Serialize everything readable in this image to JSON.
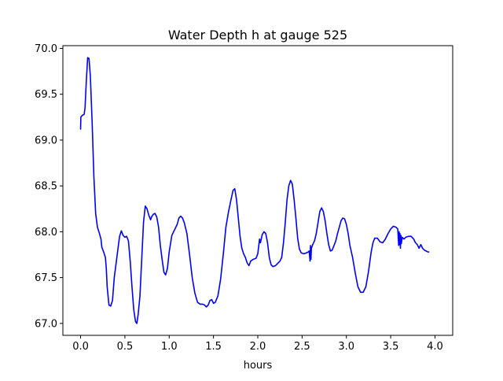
{
  "chart_data": {
    "type": "line",
    "title": "Water Depth h at gauge 525",
    "xlabel": "hours",
    "ylabel": "",
    "xlim": [
      -0.2,
      4.2
    ],
    "ylim": [
      66.87,
      70.03
    ],
    "grid": false,
    "x_ticks": [
      0.0,
      0.5,
      1.0,
      1.5,
      2.0,
      2.5,
      3.0,
      3.5,
      4.0
    ],
    "x_tick_labels": [
      "0.0",
      "0.5",
      "1.0",
      "1.5",
      "2.0",
      "2.5",
      "3.0",
      "3.5",
      "4.0"
    ],
    "y_ticks": [
      67.0,
      67.5,
      68.0,
      68.5,
      69.0,
      69.5,
      70.0
    ],
    "y_tick_labels": [
      "67.0",
      "67.5",
      "68.0",
      "68.5",
      "69.0",
      "69.5",
      "70.0"
    ],
    "series": [
      {
        "color": "#0000ff",
        "points": [
          [
            0.0,
            69.12
          ],
          [
            0.003,
            69.25
          ],
          [
            0.02,
            69.27
          ],
          [
            0.04,
            69.28
          ],
          [
            0.05,
            69.35
          ],
          [
            0.065,
            69.65
          ],
          [
            0.08,
            69.9
          ],
          [
            0.095,
            69.89
          ],
          [
            0.11,
            69.7
          ],
          [
            0.13,
            69.2
          ],
          [
            0.15,
            68.6
          ],
          [
            0.17,
            68.2
          ],
          [
            0.19,
            68.05
          ],
          [
            0.21,
            67.99
          ],
          [
            0.23,
            67.92
          ],
          [
            0.24,
            67.83
          ],
          [
            0.26,
            67.78
          ],
          [
            0.28,
            67.72
          ],
          [
            0.29,
            67.6
          ],
          [
            0.3,
            67.4
          ],
          [
            0.32,
            67.2
          ],
          [
            0.34,
            67.19
          ],
          [
            0.36,
            67.25
          ],
          [
            0.38,
            67.5
          ],
          [
            0.4,
            67.65
          ],
          [
            0.42,
            67.8
          ],
          [
            0.44,
            67.95
          ],
          [
            0.46,
            68.01
          ],
          [
            0.48,
            67.96
          ],
          [
            0.5,
            67.94
          ],
          [
            0.52,
            67.95
          ],
          [
            0.54,
            67.9
          ],
          [
            0.56,
            67.68
          ],
          [
            0.58,
            67.4
          ],
          [
            0.6,
            67.15
          ],
          [
            0.62,
            67.02
          ],
          [
            0.635,
            67.0
          ],
          [
            0.65,
            67.1
          ],
          [
            0.67,
            67.3
          ],
          [
            0.69,
            67.7
          ],
          [
            0.71,
            68.1
          ],
          [
            0.73,
            68.28
          ],
          [
            0.75,
            68.25
          ],
          [
            0.77,
            68.18
          ],
          [
            0.79,
            68.13
          ],
          [
            0.8,
            68.16
          ],
          [
            0.82,
            68.19
          ],
          [
            0.84,
            68.2
          ],
          [
            0.86,
            68.16
          ],
          [
            0.88,
            68.05
          ],
          [
            0.9,
            67.85
          ],
          [
            0.92,
            67.7
          ],
          [
            0.94,
            67.56
          ],
          [
            0.96,
            67.53
          ],
          [
            0.98,
            67.6
          ],
          [
            1.0,
            67.78
          ],
          [
            1.03,
            67.96
          ],
          [
            1.06,
            68.02
          ],
          [
            1.09,
            68.08
          ],
          [
            1.11,
            68.15
          ],
          [
            1.13,
            68.17
          ],
          [
            1.15,
            68.15
          ],
          [
            1.17,
            68.1
          ],
          [
            1.2,
            67.98
          ],
          [
            1.23,
            67.75
          ],
          [
            1.26,
            67.5
          ],
          [
            1.29,
            67.33
          ],
          [
            1.32,
            67.23
          ],
          [
            1.35,
            67.21
          ],
          [
            1.38,
            67.21
          ],
          [
            1.4,
            67.2
          ],
          [
            1.42,
            67.18
          ],
          [
            1.44,
            67.2
          ],
          [
            1.46,
            67.25
          ],
          [
            1.48,
            67.26
          ],
          [
            1.5,
            67.22
          ],
          [
            1.52,
            67.23
          ],
          [
            1.55,
            67.3
          ],
          [
            1.58,
            67.48
          ],
          [
            1.61,
            67.75
          ],
          [
            1.64,
            68.05
          ],
          [
            1.67,
            68.22
          ],
          [
            1.7,
            68.36
          ],
          [
            1.72,
            68.45
          ],
          [
            1.74,
            68.47
          ],
          [
            1.76,
            68.35
          ],
          [
            1.78,
            68.15
          ],
          [
            1.8,
            67.95
          ],
          [
            1.82,
            67.82
          ],
          [
            1.84,
            67.76
          ],
          [
            1.86,
            67.72
          ],
          [
            1.88,
            67.66
          ],
          [
            1.9,
            67.63
          ],
          [
            1.92,
            67.68
          ],
          [
            1.95,
            67.7
          ],
          [
            1.98,
            67.71
          ],
          [
            2.0,
            67.76
          ],
          [
            2.02,
            67.92
          ],
          [
            2.03,
            67.88
          ],
          [
            2.05,
            67.97
          ],
          [
            2.07,
            68.0
          ],
          [
            2.09,
            67.98
          ],
          [
            2.11,
            67.88
          ],
          [
            2.13,
            67.72
          ],
          [
            2.15,
            67.64
          ],
          [
            2.17,
            67.62
          ],
          [
            2.2,
            67.63
          ],
          [
            2.22,
            67.65
          ],
          [
            2.25,
            67.68
          ],
          [
            2.27,
            67.72
          ],
          [
            2.29,
            67.88
          ],
          [
            2.31,
            68.1
          ],
          [
            2.33,
            68.35
          ],
          [
            2.35,
            68.5
          ],
          [
            2.37,
            68.56
          ],
          [
            2.39,
            68.52
          ],
          [
            2.41,
            68.35
          ],
          [
            2.43,
            68.15
          ],
          [
            2.45,
            67.93
          ],
          [
            2.47,
            67.81
          ],
          [
            2.49,
            67.77
          ],
          [
            2.52,
            67.76
          ],
          [
            2.55,
            67.77
          ],
          [
            2.57,
            67.78
          ],
          [
            2.58,
            67.79
          ],
          [
            2.59,
            67.68
          ],
          [
            2.595,
            67.85
          ],
          [
            2.6,
            67.7
          ],
          [
            2.605,
            67.82
          ],
          [
            2.62,
            67.86
          ],
          [
            2.64,
            67.9
          ],
          [
            2.66,
            67.98
          ],
          [
            2.68,
            68.1
          ],
          [
            2.7,
            68.22
          ],
          [
            2.72,
            68.26
          ],
          [
            2.74,
            68.22
          ],
          [
            2.76,
            68.12
          ],
          [
            2.78,
            67.98
          ],
          [
            2.8,
            67.86
          ],
          [
            2.82,
            67.79
          ],
          [
            2.84,
            67.8
          ],
          [
            2.86,
            67.85
          ],
          [
            2.88,
            67.9
          ],
          [
            2.9,
            67.98
          ],
          [
            2.92,
            68.05
          ],
          [
            2.94,
            68.12
          ],
          [
            2.96,
            68.15
          ],
          [
            2.98,
            68.14
          ],
          [
            3.0,
            68.08
          ],
          [
            3.02,
            67.98
          ],
          [
            3.04,
            67.85
          ],
          [
            3.07,
            67.72
          ],
          [
            3.1,
            67.55
          ],
          [
            3.13,
            67.4
          ],
          [
            3.16,
            67.34
          ],
          [
            3.19,
            67.34
          ],
          [
            3.22,
            67.4
          ],
          [
            3.25,
            67.57
          ],
          [
            3.28,
            67.78
          ],
          [
            3.3,
            67.88
          ],
          [
            3.32,
            67.93
          ],
          [
            3.35,
            67.93
          ],
          [
            3.38,
            67.89
          ],
          [
            3.41,
            67.88
          ],
          [
            3.44,
            67.92
          ],
          [
            3.47,
            67.98
          ],
          [
            3.5,
            68.03
          ],
          [
            3.53,
            68.06
          ],
          [
            3.56,
            68.05
          ],
          [
            3.58,
            68.03
          ],
          [
            3.59,
            67.85
          ],
          [
            3.595,
            68.0
          ],
          [
            3.6,
            67.86
          ],
          [
            3.605,
            67.98
          ],
          [
            3.61,
            67.82
          ],
          [
            3.615,
            67.96
          ],
          [
            3.62,
            67.87
          ],
          [
            3.63,
            67.94
          ],
          [
            3.65,
            67.92
          ],
          [
            3.67,
            67.94
          ],
          [
            3.7,
            67.95
          ],
          [
            3.73,
            67.95
          ],
          [
            3.76,
            67.92
          ],
          [
            3.78,
            67.88
          ],
          [
            3.8,
            67.86
          ],
          [
            3.82,
            67.82
          ],
          [
            3.84,
            67.86
          ],
          [
            3.86,
            67.82
          ],
          [
            3.88,
            67.8
          ],
          [
            3.9,
            67.79
          ],
          [
            3.92,
            67.78
          ],
          [
            3.93,
            67.78
          ]
        ]
      }
    ]
  }
}
